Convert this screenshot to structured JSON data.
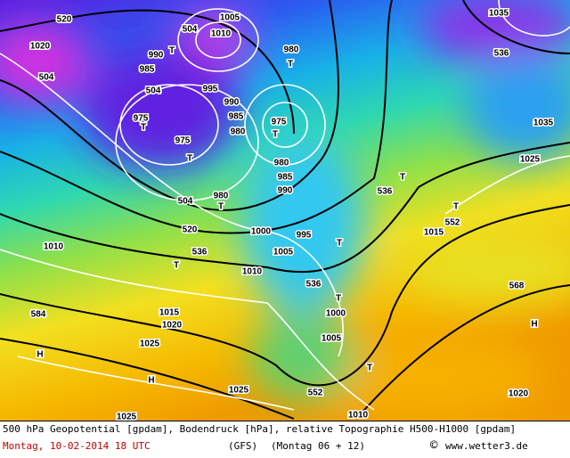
{
  "map": {
    "labels": [
      "520",
      "504",
      "1020",
      "504",
      "990",
      "985",
      "T",
      "1010",
      "1005",
      "504",
      "995",
      "990",
      "985",
      "980",
      "980",
      "T",
      "975",
      "T",
      "975",
      "T",
      "975",
      "T",
      "980",
      "985",
      "990",
      "504",
      "980",
      "T",
      "520",
      "536",
      "1000",
      "995",
      "1005",
      "1010",
      "T",
      "536",
      "T",
      "T",
      "1000",
      "1005",
      "536",
      "T",
      "552",
      "T",
      "1015",
      "568",
      "H",
      "1025",
      "1035",
      "536",
      "1035",
      "584",
      "1015",
      "1020",
      "1025",
      "H",
      "H",
      "1025",
      "552",
      "1010",
      "T",
      "1020",
      "1025",
      "1010"
    ]
  },
  "footer": {
    "caption": "500 hPa Geopotential [gpdam], Bodendruck [hPa], relative Topographie H500-H1000 [gpdam]",
    "date": "Montag, 10-02-2014  18 UTC",
    "model": "(GFS)",
    "run": "(Montag 06 + 12)",
    "copyright": "©",
    "source": "www.wetter3.de"
  }
}
